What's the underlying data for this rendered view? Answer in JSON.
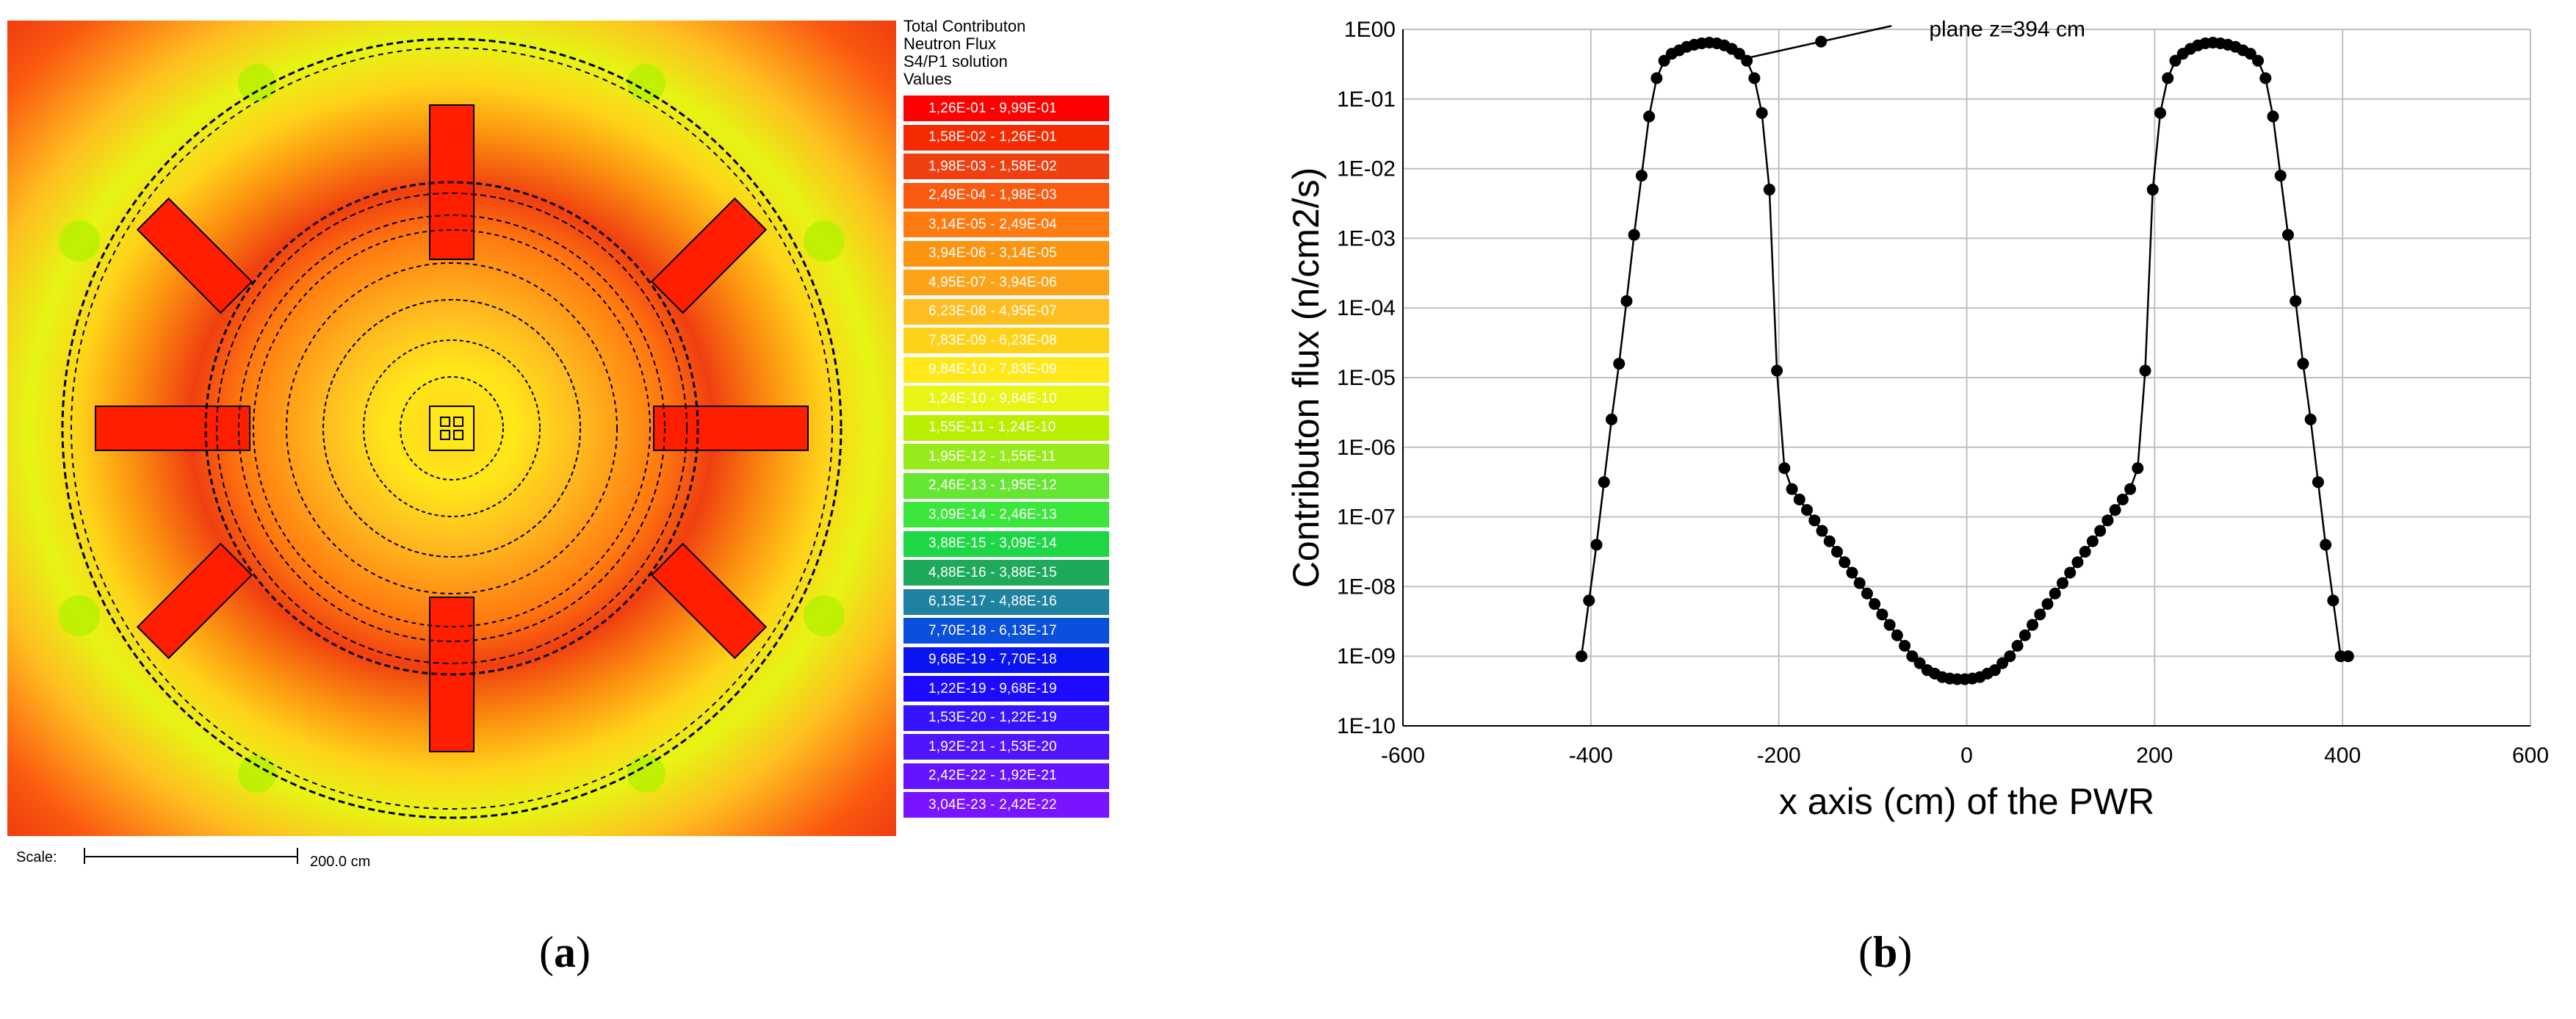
{
  "panel_a": {
    "label_open": "(",
    "label_letter": "a",
    "label_close": ")",
    "legend": {
      "title_lines": [
        "Total Contributon",
        "Neutron Flux",
        "S4/P1 solution",
        "Values"
      ],
      "items": [
        {
          "range": "1,26E-01 - 9,99E-01",
          "color": "#ff0000"
        },
        {
          "range": "1,58E-02 - 1,26E-01",
          "color": "#f52a00"
        },
        {
          "range": "1,98E-03 - 1,58E-02",
          "color": "#f03f10"
        },
        {
          "range": "2,49E-04 - 1,98E-03",
          "color": "#fa5a10"
        },
        {
          "range": "3,14E-05 - 2,49E-04",
          "color": "#ff7a10"
        },
        {
          "range": "3,94E-06 - 3,14E-05",
          "color": "#fc9410"
        },
        {
          "range": "4,95E-07 - 3,94E-06",
          "color": "#fca31a"
        },
        {
          "range": "6,23E-08 - 4,95E-07",
          "color": "#ffbe20"
        },
        {
          "range": "7,83E-09 - 6,23E-08",
          "color": "#ffd21a"
        },
        {
          "range": "9,84E-10 - 7,83E-09",
          "color": "#ffe81a"
        },
        {
          "range": "1,24E-10 - 9,84E-10",
          "color": "#e6f514"
        },
        {
          "range": "1,55E-11 - 1,24E-10",
          "color": "#b8f000"
        },
        {
          "range": "1,95E-12 - 1,55E-11",
          "color": "#96eb1a"
        },
        {
          "range": "2,46E-13 - 1,95E-12",
          "color": "#64e632"
        },
        {
          "range": "3,09E-14 - 2,46E-13",
          "color": "#3ce63c"
        },
        {
          "range": "3,88E-15 - 3,09E-14",
          "color": "#1ed746"
        },
        {
          "range": "4,88E-16 - 3,88E-15",
          "color": "#1eaa5a"
        },
        {
          "range": "6,13E-17 - 4,88E-16",
          "color": "#1e82a0"
        },
        {
          "range": "7,70E-18 - 6,13E-17",
          "color": "#0a50dc"
        },
        {
          "range": "9,68E-19 - 7,70E-18",
          "color": "#0a14f0"
        },
        {
          "range": "1,22E-19 - 9,68E-19",
          "color": "#1e0aff"
        },
        {
          "range": "1,53E-20 - 1,22E-19",
          "color": "#3714ff"
        },
        {
          "range": "1,92E-21 - 1,53E-20",
          "color": "#5014ff"
        },
        {
          "range": "2,42E-22 - 1,92E-21",
          "color": "#6414ff"
        },
        {
          "range": "3,04E-23 - 2,42E-22",
          "color": "#7814ff"
        }
      ]
    },
    "scale_label": "Scale:",
    "scale_value": "200.0 cm"
  },
  "panel_b": {
    "label_open": "(",
    "label_letter": "b",
    "label_close": ")"
  },
  "chart_data": {
    "type": "line",
    "title": "",
    "xlabel": "x axis (cm) of the PWR",
    "ylabel": "Contributon flux (n/cm2/s)",
    "xlim": [
      -600,
      600
    ],
    "ylim_log10": [
      -10,
      0
    ],
    "x_ticks": [
      "-600",
      "-400",
      "-200",
      "0",
      "200",
      "400",
      "600"
    ],
    "y_ticks": [
      "1E00",
      "1E-01",
      "1E-02",
      "1E-03",
      "1E-04",
      "1E-05",
      "1E-06",
      "1E-07",
      "1E-08",
      "1E-09",
      "1E-10"
    ],
    "grid": true,
    "annotation": "plane z=394 cm",
    "series": [
      {
        "name": "plane z=394 cm",
        "x": [
          -410,
          -402,
          -394,
          -386,
          -378,
          -370,
          -362,
          -354,
          -346,
          -338,
          -330,
          -322,
          -314,
          -306,
          -298,
          -290,
          -282,
          -274,
          -266,
          -258,
          -250,
          -242,
          -234,
          -226,
          -218,
          -210,
          -202,
          -194,
          -186,
          -178,
          -170,
          -162,
          -154,
          -146,
          -138,
          -130,
          -122,
          -114,
          -106,
          -98,
          -90,
          -82,
          -74,
          -66,
          -58,
          -50,
          -42,
          -34,
          -26,
          -18,
          -10,
          -2,
          6,
          14,
          22,
          30,
          38,
          46,
          54,
          62,
          70,
          78,
          86,
          94,
          102,
          110,
          118,
          126,
          134,
          142,
          150,
          158,
          166,
          174,
          182,
          190,
          198,
          206,
          214,
          222,
          230,
          238,
          246,
          254,
          262,
          270,
          278,
          286,
          294,
          302,
          310,
          318,
          326,
          334,
          342,
          350,
          358,
          366,
          374,
          382,
          390,
          398,
          406
        ],
        "y_log10": [
          -9.0,
          -8.2,
          -7.4,
          -6.5,
          -5.6,
          -4.8,
          -3.9,
          -2.95,
          -2.1,
          -1.25,
          -0.7,
          -0.45,
          -0.35,
          -0.3,
          -0.25,
          -0.22,
          -0.2,
          -0.19,
          -0.2,
          -0.23,
          -0.28,
          -0.35,
          -0.45,
          -0.7,
          -1.2,
          -2.3,
          -4.9,
          -6.3,
          -6.6,
          -6.75,
          -6.9,
          -7.05,
          -7.2,
          -7.35,
          -7.5,
          -7.65,
          -7.8,
          -7.95,
          -8.1,
          -8.25,
          -8.4,
          -8.55,
          -8.7,
          -8.85,
          -9.0,
          -9.1,
          -9.2,
          -9.25,
          -9.3,
          -9.32,
          -9.33,
          -9.33,
          -9.32,
          -9.3,
          -9.25,
          -9.2,
          -9.1,
          -9.0,
          -8.85,
          -8.7,
          -8.55,
          -8.4,
          -8.25,
          -8.1,
          -7.95,
          -7.8,
          -7.65,
          -7.5,
          -7.35,
          -7.2,
          -7.05,
          -6.9,
          -6.75,
          -6.6,
          -6.3,
          -4.9,
          -2.3,
          -1.2,
          -0.7,
          -0.45,
          -0.35,
          -0.28,
          -0.23,
          -0.2,
          -0.19,
          -0.2,
          -0.22,
          -0.25,
          -0.3,
          -0.35,
          -0.45,
          -0.7,
          -1.25,
          -2.1,
          -2.95,
          -3.9,
          -4.8,
          -5.6,
          -6.5,
          -7.4,
          -8.2,
          -9.0,
          -9.0
        ]
      }
    ]
  }
}
